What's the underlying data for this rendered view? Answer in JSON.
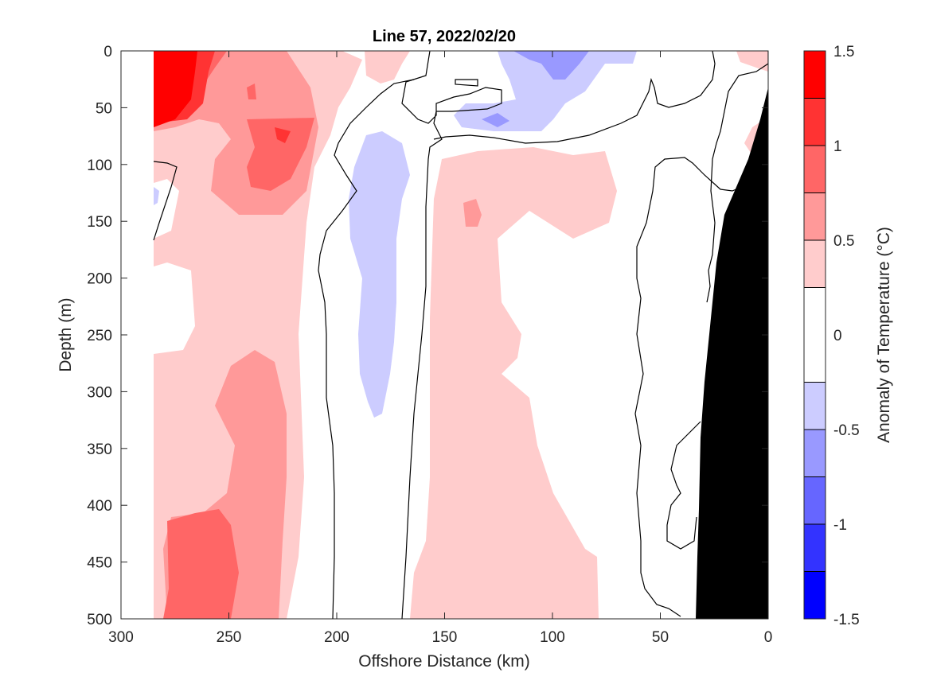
{
  "chart_data": {
    "type": "contour",
    "title": "Line 57, 2022/02/20",
    "xlabel": "Offshore Distance (km)",
    "ylabel": "Depth (m)",
    "xlim": [
      300,
      0
    ],
    "ylim": [
      0,
      500
    ],
    "x_reversed": true,
    "y_reversed": true,
    "x_ticks": [
      "300",
      "250",
      "200",
      "150",
      "100",
      "50",
      "0"
    ],
    "y_ticks": [
      "0",
      "50",
      "100",
      "150",
      "200",
      "250",
      "300",
      "350",
      "400",
      "450",
      "500"
    ],
    "colorbar": {
      "label": "Anomaly of Temperature (°C)",
      "range": [
        -1.5,
        1.5
      ],
      "tick_labels": [
        "1.5",
        "1",
        "0.5",
        "0",
        "-0.5",
        "-1",
        "-1.5"
      ],
      "levels": [
        -1.5,
        -1.25,
        -1.0,
        -0.75,
        -0.5,
        -0.25,
        0.25,
        0.5,
        0.75,
        1.0,
        1.25,
        1.5
      ],
      "colors": [
        "#0000ff",
        "#3333ff",
        "#6666ff",
        "#9999ff",
        "#ccccff",
        "#ffffff",
        "#ffcccc",
        "#ff9999",
        "#ff6666",
        "#ff3333",
        "#ff0000"
      ]
    },
    "data_extent_x": [
      285,
      0
    ],
    "regions": [
      {
        "name": "warm-surface-core",
        "anomaly": 1.5,
        "x_range": [
          285,
          260
        ],
        "depth_range": [
          0,
          65
        ]
      },
      {
        "name": "warm-subsurface-core",
        "anomaly": 1.0,
        "x_range": [
          240,
          205
        ],
        "depth_range": [
          60,
          120
        ]
      },
      {
        "name": "cool-surface-eddy",
        "anomaly": -1.0,
        "x_range": [
          130,
          80
        ],
        "depth_range": [
          0,
          70
        ]
      },
      {
        "name": "cool-intrusion",
        "anomaly": -0.5,
        "x_range": [
          195,
          165
        ],
        "depth_range": [
          70,
          320
        ]
      },
      {
        "name": "warm-deep-west",
        "anomaly": 0.75,
        "x_range": [
          285,
          210
        ],
        "depth_range": [
          260,
          500
        ]
      },
      {
        "name": "warm-band-middle",
        "anomaly": 0.5,
        "x_range": [
          170,
          75
        ],
        "depth_range": [
          90,
          500
        ]
      },
      {
        "name": "bathymetry",
        "anomaly": null,
        "x_range": [
          35,
          0
        ],
        "depth_range": [
          35,
          500
        ]
      }
    ]
  }
}
